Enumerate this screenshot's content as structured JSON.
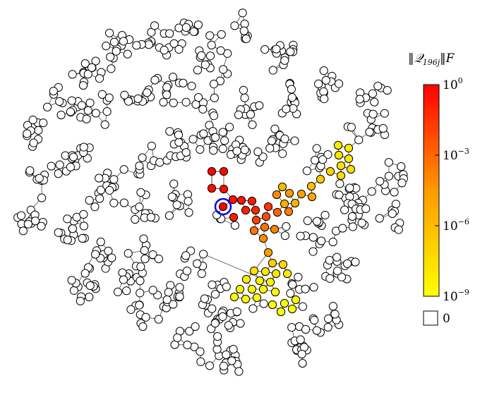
{
  "colorbar": {
    "title": "‖𝒬",
    "title_sub": "196j",
    "title_tail": "‖F",
    "tick_top": "10",
    "tick_top_exp": "0",
    "tick_mid1": "10",
    "tick_mid1_exp": "−3",
    "tick_mid2": "10",
    "tick_mid2_exp": "−6",
    "tick_bottom": "10",
    "tick_bottom_exp": "−9",
    "zero_label": "0",
    "colors": {
      "high": "#ff0000",
      "mid": "#ff8800",
      "low": "#ffff00",
      "zero": "#ffffff"
    },
    "scale": "log"
  },
  "colored_nodes": [
    {
      "level": 0.0,
      "count": 1
    },
    {
      "level": 0.1,
      "count": 12
    },
    {
      "level": 0.5,
      "count": 14
    },
    {
      "level": 0.9,
      "count": 26
    }
  ],
  "source_node": {
    "marker": "blue-ring"
  }
}
